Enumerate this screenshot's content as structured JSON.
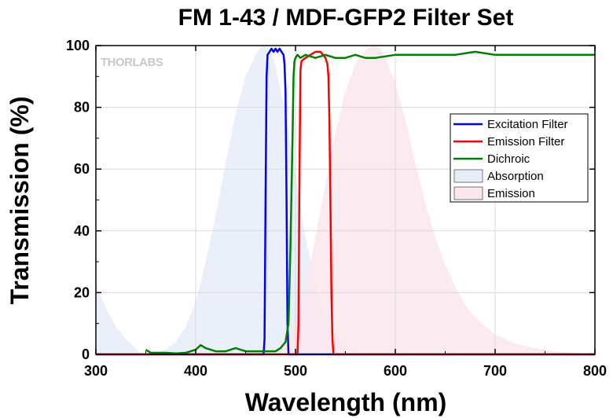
{
  "watermark": "THORLABS",
  "chart_data": {
    "type": "line",
    "title": "FM 1-43 / MDF-GFP2 Filter Set",
    "xlabel": "Wavelength (nm)",
    "ylabel": "Transmission (%)",
    "xlim": [
      300,
      800
    ],
    "ylim": [
      0,
      100
    ],
    "xticks": [
      300,
      400,
      500,
      600,
      700,
      800
    ],
    "yticks": [
      0,
      20,
      40,
      60,
      80,
      100
    ],
    "grid": true,
    "legend_position": "right",
    "series": [
      {
        "name": "Excitation Filter",
        "kind": "line",
        "color": "#0000ff",
        "x": [
          300,
          468,
          469,
          470,
          471,
          472,
          474,
          476,
          478,
          480,
          482,
          484,
          486,
          488,
          489,
          490,
          491,
          492,
          493,
          800
        ],
        "y": [
          0,
          0,
          5,
          50,
          90,
          97,
          98,
          99,
          98,
          99,
          98,
          99,
          98,
          97,
          94,
          85,
          50,
          10,
          0,
          0
        ]
      },
      {
        "name": "Emission Filter",
        "kind": "line",
        "color": "#ff0000",
        "x": [
          300,
          502,
          503,
          504,
          505,
          506,
          510,
          515,
          520,
          525,
          530,
          532,
          533,
          534,
          535,
          536,
          537,
          538,
          800
        ],
        "y": [
          0,
          0,
          10,
          60,
          92,
          95,
          96,
          97,
          98,
          98,
          96,
          94,
          90,
          75,
          50,
          20,
          5,
          0,
          0
        ]
      },
      {
        "name": "Dichroic",
        "kind": "line",
        "color": "#008000",
        "x": [
          350,
          355,
          360,
          370,
          380,
          390,
          400,
          405,
          410,
          415,
          420,
          430,
          440,
          450,
          460,
          470,
          480,
          485,
          490,
          493,
          495,
          497,
          498,
          499,
          500,
          502,
          505,
          510,
          520,
          530,
          540,
          550,
          560,
          570,
          580,
          600,
          620,
          640,
          660,
          680,
          700,
          720,
          740,
          760,
          780,
          800
        ],
        "y": [
          1.5,
          0.5,
          0.5,
          0.5,
          0.3,
          0.5,
          1.5,
          3,
          2,
          1.5,
          1,
          1,
          2,
          1,
          1,
          1,
          1,
          2,
          4,
          10,
          35,
          70,
          90,
          95,
          96,
          97,
          96,
          97,
          96,
          97,
          96,
          96,
          97,
          96,
          96,
          97,
          97,
          97,
          97,
          98,
          97,
          97,
          97,
          97,
          97,
          97
        ]
      },
      {
        "name": "Absorption",
        "kind": "area",
        "color": "#e6ecf8",
        "x": [
          300,
          310,
          320,
          330,
          340,
          345,
          350,
          360,
          370,
          380,
          390,
          400,
          410,
          420,
          430,
          440,
          450,
          460,
          465,
          470,
          475,
          480,
          490,
          500,
          510,
          520,
          530,
          540,
          550,
          560,
          570,
          580,
          800
        ],
        "y": [
          23,
          15,
          9,
          5,
          2,
          0,
          0,
          0.5,
          1.5,
          4,
          9,
          17,
          30,
          45,
          62,
          78,
          90,
          97,
          99.5,
          100,
          98,
          93,
          78,
          58,
          38,
          23,
          12,
          6,
          3,
          1.5,
          0.5,
          0,
          0
        ]
      },
      {
        "name": "Emission",
        "kind": "area",
        "color": "#fbe6ee",
        "x": [
          480,
          490,
          500,
          510,
          520,
          530,
          540,
          550,
          560,
          570,
          575,
          580,
          585,
          590,
          600,
          610,
          620,
          630,
          640,
          650,
          660,
          670,
          680,
          690,
          700,
          720,
          740,
          760,
          780,
          800
        ],
        "y": [
          0,
          3,
          10,
          22,
          38,
          55,
          72,
          85,
          94,
          98.5,
          99.5,
          100,
          99,
          96,
          88,
          76,
          62,
          49,
          38,
          29,
          22,
          16,
          12,
          9,
          6.5,
          3.5,
          2,
          1,
          0.5,
          0
        ]
      }
    ]
  }
}
